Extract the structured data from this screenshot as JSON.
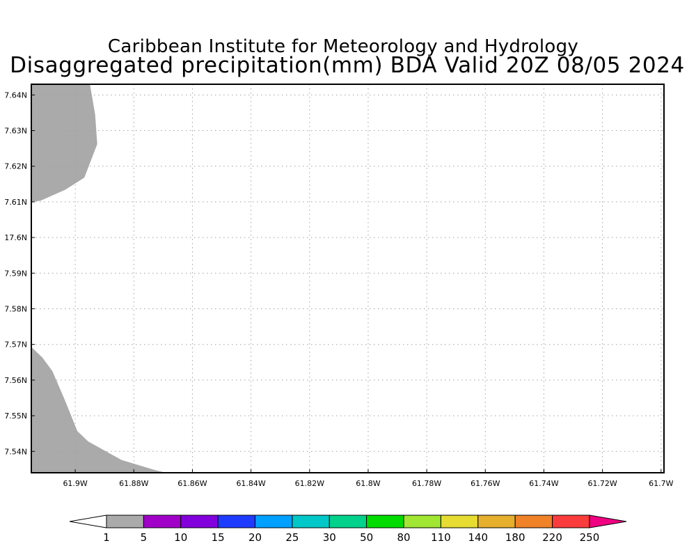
{
  "header": {
    "title_line1": "Caribbean Institute for Meteorology and Hydrology",
    "title_line2": "Disaggregated precipitation(mm) BDA Valid 20Z 08/05 2024"
  },
  "map": {
    "lon_range": [
      -61.915,
      -61.699
    ],
    "lat_range": [
      17.534,
      17.643
    ],
    "lon_ticks": [
      {
        "value": -61.9,
        "label": "61.9W"
      },
      {
        "value": -61.88,
        "label": "61.88W"
      },
      {
        "value": -61.86,
        "label": "61.86W"
      },
      {
        "value": -61.84,
        "label": "61.84W"
      },
      {
        "value": -61.82,
        "label": "61.82W"
      },
      {
        "value": -61.8,
        "label": "61.8W"
      },
      {
        "value": -61.78,
        "label": "61.78W"
      },
      {
        "value": -61.76,
        "label": "61.76W"
      },
      {
        "value": -61.74,
        "label": "61.74W"
      },
      {
        "value": -61.72,
        "label": "61.72W"
      },
      {
        "value": -61.7,
        "label": "61.7W"
      }
    ],
    "lat_ticks": [
      {
        "value": 17.64,
        "label": "7.64N"
      },
      {
        "value": 17.63,
        "label": "7.63N"
      },
      {
        "value": 17.62,
        "label": "7.62N"
      },
      {
        "value": 17.61,
        "label": "7.61N"
      },
      {
        "value": 17.6,
        "label": "17.6N"
      },
      {
        "value": 17.59,
        "label": "7.59N"
      },
      {
        "value": 17.58,
        "label": "7.58N"
      },
      {
        "value": 17.57,
        "label": "7.57N"
      },
      {
        "value": 17.56,
        "label": "7.56N"
      },
      {
        "value": 17.55,
        "label": "7.55N"
      },
      {
        "value": 17.54,
        "label": "7.54N"
      }
    ],
    "grid": true,
    "land_color": "#aaaaaa",
    "land_polygons": [
      [
        [
          -61.915,
          17.643
        ],
        [
          -61.895,
          17.643
        ],
        [
          -61.8932,
          17.6345
        ],
        [
          -61.8925,
          17.6262
        ],
        [
          -61.8969,
          17.6168
        ],
        [
          -61.9034,
          17.6134
        ],
        [
          -61.9119,
          17.6103
        ],
        [
          -61.9155,
          17.61
        ]
      ],
      [
        [
          -61.915,
          17.5693
        ],
        [
          -61.9112,
          17.5663
        ],
        [
          -61.9078,
          17.5625
        ],
        [
          -61.9035,
          17.5543
        ],
        [
          -61.8993,
          17.5457
        ],
        [
          -61.8956,
          17.5428
        ],
        [
          -61.8842,
          17.5376
        ],
        [
          -61.873,
          17.5348
        ],
        [
          -61.869,
          17.534
        ],
        [
          -61.915,
          17.534
        ]
      ]
    ]
  },
  "colorbar": {
    "labels": [
      "1",
      "5",
      "10",
      "15",
      "20",
      "25",
      "30",
      "50",
      "80",
      "110",
      "140",
      "180",
      "220",
      "250"
    ],
    "colors": [
      "#ffffff",
      "#aaaaaa",
      "#a000c8",
      "#8200dc",
      "#1e3cff",
      "#00a0ff",
      "#00c8c8",
      "#00d28c",
      "#00dc00",
      "#a0e632",
      "#e6dc32",
      "#e6af2d",
      "#f08228",
      "#fa3c3c",
      "#f00082"
    ]
  }
}
